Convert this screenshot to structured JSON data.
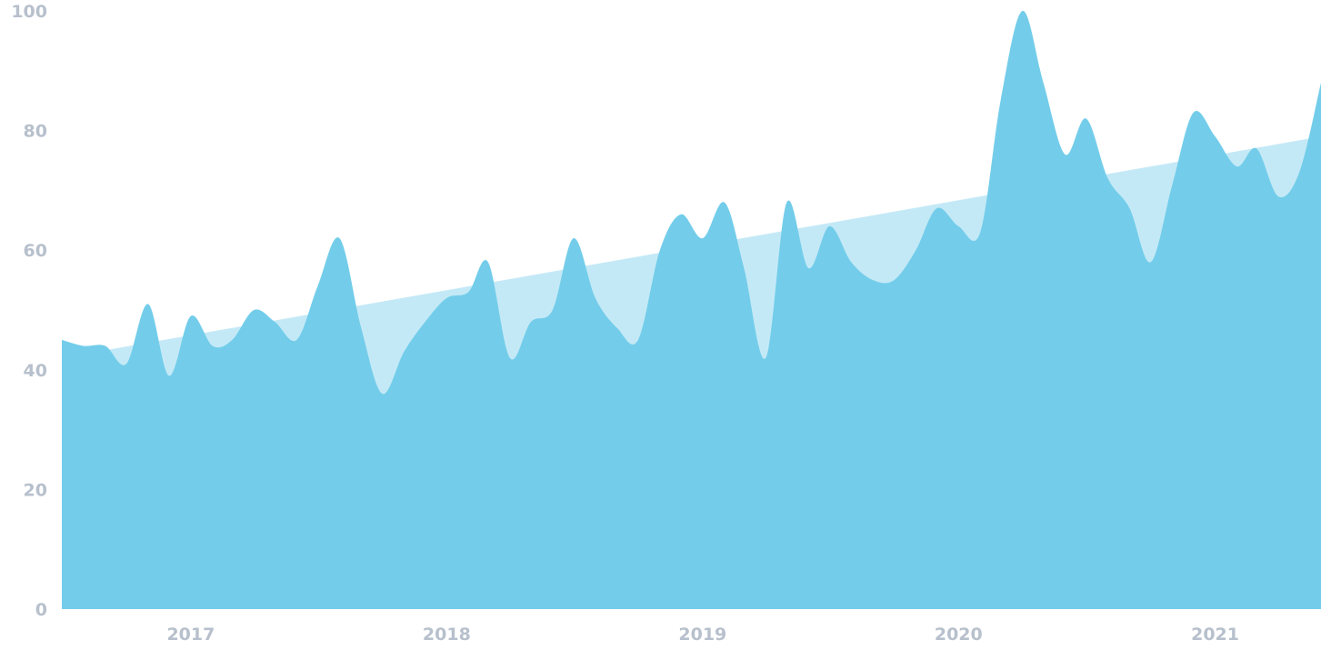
{
  "chart_data": {
    "type": "area",
    "x_ticks": [
      "2017",
      "2018",
      "2019",
      "2020",
      "2021"
    ],
    "y_ticks": [
      "0",
      "20",
      "40",
      "60",
      "80",
      "100"
    ],
    "ylim": [
      0,
      100
    ],
    "xlim": [
      "2016-07-01",
      "2021-06-01"
    ],
    "grid": false,
    "colors": {
      "series": "#73cdea",
      "trend": "#c4e9f6",
      "tick_text": "#b7c0cc"
    },
    "series": [
      {
        "x": [
          "2016-07-01",
          "2016-08-01",
          "2016-09-01",
          "2016-10-01",
          "2016-11-01",
          "2016-12-01",
          "2017-01-01",
          "2017-02-01",
          "2017-03-01",
          "2017-04-01",
          "2017-05-01",
          "2017-06-01",
          "2017-07-01",
          "2017-08-01",
          "2017-09-01",
          "2017-10-01",
          "2017-11-01",
          "2017-12-01",
          "2018-01-01",
          "2018-02-01",
          "2018-03-01",
          "2018-04-01",
          "2018-05-01",
          "2018-06-01",
          "2018-07-01",
          "2018-08-01",
          "2018-09-01",
          "2018-10-01",
          "2018-11-01",
          "2018-12-01",
          "2019-01-01",
          "2019-02-01",
          "2019-03-01",
          "2019-04-01",
          "2019-05-01",
          "2019-06-01",
          "2019-07-01",
          "2019-08-01",
          "2019-09-01",
          "2019-10-01",
          "2019-11-01",
          "2019-12-01",
          "2020-01-01",
          "2020-02-01",
          "2020-03-01",
          "2020-04-01",
          "2020-05-01",
          "2020-06-01",
          "2020-07-01",
          "2020-08-01",
          "2020-09-01",
          "2020-10-01",
          "2020-11-01",
          "2020-12-01",
          "2021-01-01",
          "2021-02-01",
          "2021-03-01",
          "2021-04-01",
          "2021-05-01",
          "2021-06-01"
        ],
        "values": [
          45,
          44,
          44,
          41,
          51,
          39,
          49,
          44,
          45,
          50,
          48,
          45,
          54,
          62,
          47,
          36,
          43,
          48,
          52,
          53,
          58,
          42,
          48,
          50,
          62,
          52,
          47,
          45,
          60,
          66,
          62,
          68,
          57,
          42,
          68,
          57,
          64,
          58,
          55,
          55,
          60,
          67,
          64,
          63,
          85,
          100,
          88,
          76,
          82,
          72,
          67,
          58,
          71,
          83,
          79,
          74,
          77,
          69,
          73,
          88
        ]
      },
      {
        "x": [
          "2016-07-01",
          "2021-06-01"
        ],
        "values": [
          42,
          79
        ]
      }
    ]
  }
}
